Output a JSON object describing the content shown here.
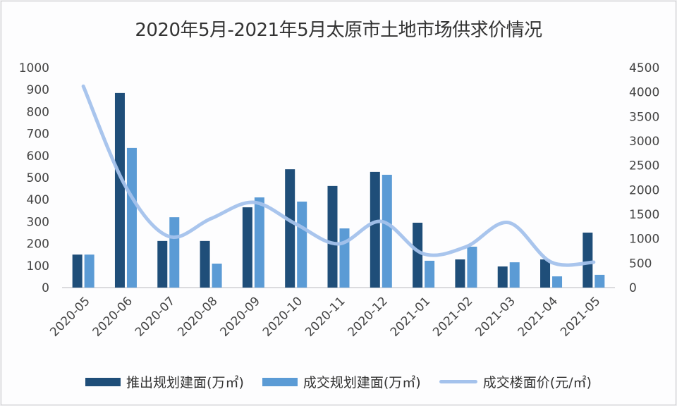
{
  "chart_data": {
    "type": "bar+line",
    "title": "2020年5月-2021年5月太原市土地市场供求价情况",
    "categories": [
      "2020-05",
      "2020-06",
      "2020-07",
      "2020-08",
      "2020-09",
      "2020-10",
      "2020-11",
      "2020-12",
      "2021-01",
      "2021-02",
      "2021-03",
      "2021-04",
      "2021-05"
    ],
    "series": [
      {
        "name": "推出规划建面(万㎡)",
        "type": "bar",
        "axis": "left",
        "color": "#1f4e79",
        "values": [
          150,
          885,
          212,
          212,
          365,
          538,
          462,
          526,
          295,
          128,
          96,
          128,
          250
        ]
      },
      {
        "name": "成交规划建面(万㎡)",
        "type": "bar",
        "axis": "left",
        "color": "#5b9bd5",
        "values": [
          150,
          635,
          320,
          109,
          410,
          391,
          269,
          513,
          122,
          186,
          115,
          51,
          58
        ]
      },
      {
        "name": "成交楼面价(元/㎡)",
        "type": "line",
        "axis": "right",
        "color": "#a4c2ec",
        "smooth": true,
        "values": [
          4120,
          2060,
          1050,
          1410,
          1745,
          1300,
          895,
          1355,
          690,
          835,
          1330,
          520,
          520
        ]
      }
    ],
    "left_axis": {
      "ylim": [
        0,
        1000
      ],
      "ticks": [
        0,
        100,
        200,
        300,
        400,
        500,
        600,
        700,
        800,
        900,
        1000
      ]
    },
    "right_axis": {
      "ylim": [
        0,
        4500
      ],
      "ticks": [
        0,
        500,
        1000,
        1500,
        2000,
        2500,
        3000,
        3500,
        4000,
        4500
      ]
    },
    "xlabel": "",
    "ylabel": "",
    "grid": false,
    "legend_position": "bottom"
  },
  "legend": [
    {
      "label": "推出规划建面(万㎡)",
      "color": "#1f4e79",
      "kind": "bar"
    },
    {
      "label": "成交规划建面(万㎡)",
      "color": "#5b9bd5",
      "kind": "bar"
    },
    {
      "label": "成交楼面价(元/㎡)",
      "color": "#a4c2ec",
      "kind": "line"
    }
  ]
}
